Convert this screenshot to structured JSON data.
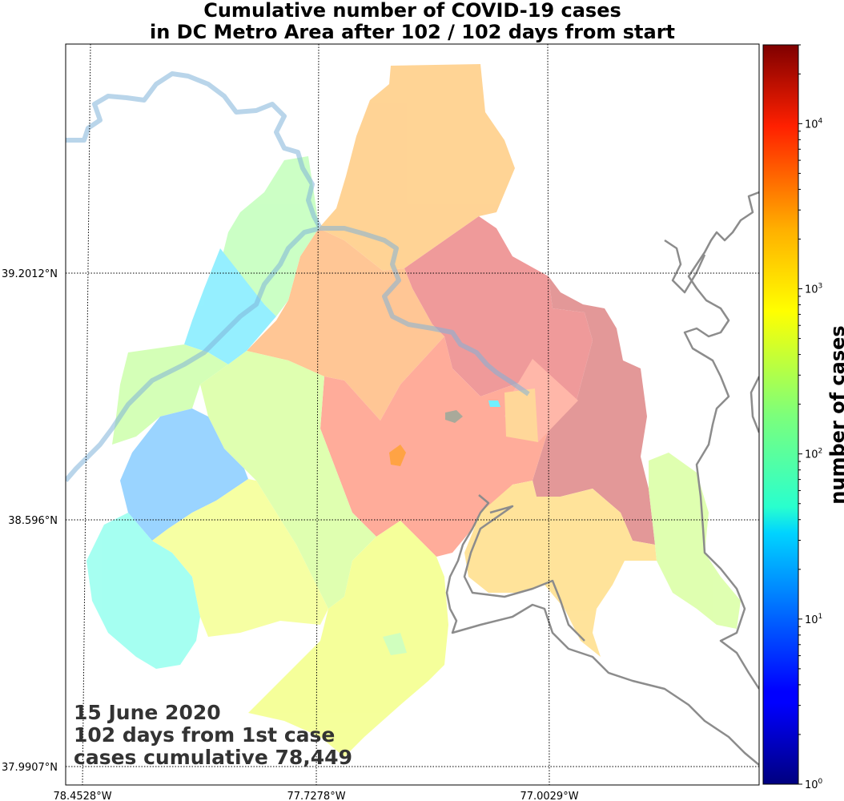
{
  "title_line1": "Cumulative number of COVID-19 cases",
  "title_line2": "in DC Metro Area after 102 / 102 days from start",
  "annotation": {
    "date": "15 June 2020",
    "days": "102 days from 1st case",
    "cases": "cases cumulative 78,449"
  },
  "lat_ticks": [
    "39.2012°N",
    "38.596°N",
    "37.9907°N"
  ],
  "lon_ticks": [
    "78.4528°W",
    "77.7278°W",
    "77.0029°W"
  ],
  "colorbar": {
    "label": "number of cases",
    "scale": "log",
    "range": [
      1,
      30000
    ],
    "colormap": "jet",
    "tick_values": [
      1,
      10,
      100,
      1000,
      10000
    ],
    "tick_bases": [
      "10",
      "10",
      "10",
      "10",
      "10"
    ],
    "tick_exponents": [
      "0",
      "1",
      "2",
      "3",
      "4"
    ]
  },
  "colors": {
    "river": "#7fb2d8",
    "coast": "#8c8c8c",
    "gridline": "#000000"
  }
}
